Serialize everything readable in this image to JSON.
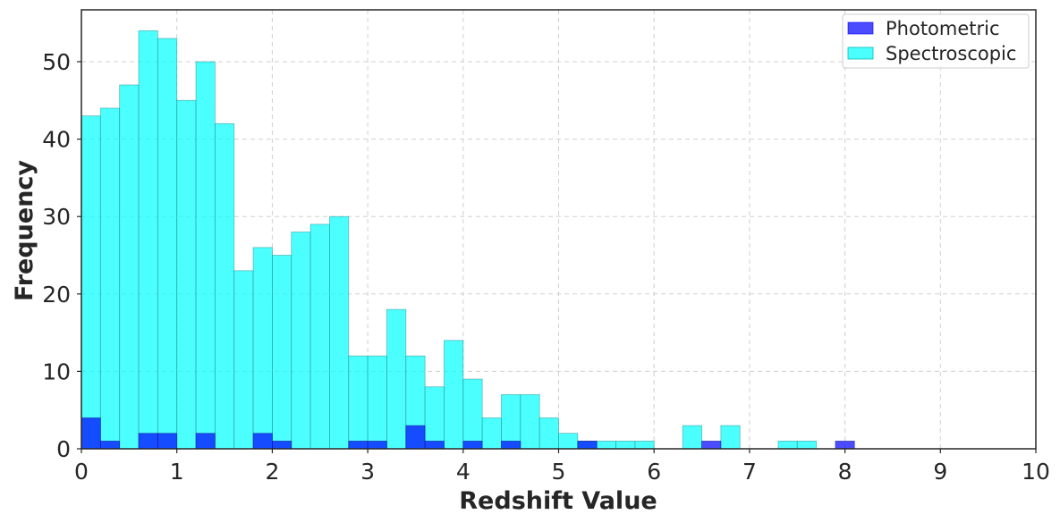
{
  "chart_data": {
    "type": "bar",
    "title": "",
    "xlabel": "Redshift Value",
    "ylabel": "Frequency",
    "xlim": [
      0,
      10
    ],
    "ylim": [
      0,
      56.7
    ],
    "xticks": [
      0,
      1,
      2,
      3,
      4,
      5,
      6,
      7,
      8,
      9,
      10
    ],
    "yticks": [
      0,
      10,
      20,
      30,
      40,
      50
    ],
    "grid": true,
    "legend_position": "top-right",
    "bin_width": 0.2,
    "series": [
      {
        "name": "Spectroscopic",
        "color": "#00ffff",
        "opacity": 0.7,
        "bin_starts": [
          0.0,
          0.2,
          0.4,
          0.6,
          0.8,
          1.0,
          1.2,
          1.4,
          1.6,
          1.8,
          2.0,
          2.2,
          2.4,
          2.6,
          2.8,
          3.0,
          3.2,
          3.4,
          3.6,
          3.8,
          4.0,
          4.2,
          4.4,
          4.6,
          4.8,
          5.0,
          5.2,
          5.4,
          5.6,
          5.8,
          6.3,
          6.7,
          7.3,
          7.5
        ],
        "values": [
          43,
          44,
          47,
          54,
          53,
          45,
          50,
          42,
          23,
          26,
          25,
          28,
          29,
          30,
          12,
          12,
          18,
          12,
          8,
          14,
          9,
          4,
          7,
          7,
          4,
          2,
          1,
          1,
          1,
          1,
          3,
          3,
          1,
          1
        ]
      },
      {
        "name": "Photometric",
        "color": "#0000ff",
        "opacity": 0.7,
        "bin_starts": [
          0.0,
          0.2,
          0.6,
          0.8,
          1.2,
          1.8,
          2.0,
          2.8,
          3.0,
          3.4,
          3.6,
          4.0,
          4.4,
          5.2,
          6.5,
          7.9
        ],
        "values": [
          4,
          1,
          2,
          2,
          2,
          2,
          1,
          1,
          1,
          3,
          1,
          1,
          1,
          1,
          1,
          1
        ]
      }
    ]
  }
}
